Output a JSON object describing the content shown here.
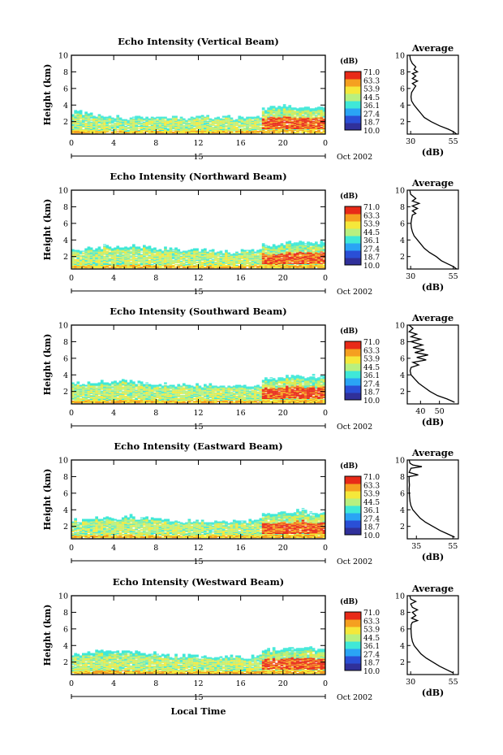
{
  "figure": {
    "x_title": "Local Time",
    "date_label": "Oct 2002",
    "day_label": "15",
    "colorbar_unit": "(dB)",
    "colorbar_ticks": [
      "71.0",
      "63.3",
      "53.9",
      "44.5",
      "36.1",
      "27.4",
      "18.7",
      "10.0"
    ],
    "colorbar_colors": [
      "#30309a",
      "#2a4fd6",
      "#2aa4f5",
      "#3fe8d8",
      "#b8f080",
      "#f5e83a",
      "#f5a020",
      "#e82a18"
    ]
  },
  "chart_data": [
    {
      "type": "heatmap",
      "title": "Echo Intensity (Vertical Beam)",
      "xlabel": "Local Time",
      "ylabel": "Height (km)",
      "x_ticks": [
        "0",
        "4",
        "8",
        "12",
        "16",
        "20",
        "0"
      ],
      "x_range": [
        0,
        24
      ],
      "y_ticks": [
        "2",
        "4",
        "6",
        "8",
        "10"
      ],
      "y_range": [
        0.5,
        10
      ],
      "top_height_km": [
        3.1,
        2.9,
        2.7,
        2.6,
        2.5,
        2.4,
        2.4,
        2.6,
        2.4,
        2.5,
        2.4,
        2.5,
        2.6,
        2.4,
        2.5,
        2.4,
        2.4,
        2.6,
        3.6,
        3.7,
        3.8,
        3.8,
        3.7,
        3.6
      ],
      "strong_echo_hours": [
        18,
        24
      ],
      "profile": {
        "title": "Average",
        "xlabel": "(dB)",
        "x_ticks": [
          "30",
          "55"
        ],
        "x_range": [
          28,
          58
        ],
        "y_ticks": [
          "2",
          "4",
          "6",
          "8",
          "10"
        ],
        "points": [
          [
            29.5,
            10
          ],
          [
            29.8,
            9.5
          ],
          [
            31,
            9
          ],
          [
            33,
            8.6
          ],
          [
            32,
            8.3
          ],
          [
            34,
            8
          ],
          [
            31,
            7.8
          ],
          [
            33,
            7.5
          ],
          [
            31,
            7.2
          ],
          [
            34,
            6.9
          ],
          [
            31,
            6.6
          ],
          [
            33,
            6.3
          ],
          [
            32,
            6
          ],
          [
            30.5,
            5.5
          ],
          [
            30.2,
            5
          ],
          [
            30.5,
            4.5
          ],
          [
            32,
            4
          ],
          [
            34,
            3.5
          ],
          [
            36,
            3
          ],
          [
            38,
            2.5
          ],
          [
            42,
            2
          ],
          [
            47,
            1.5
          ],
          [
            52,
            1.1
          ],
          [
            55,
            0.8
          ],
          [
            57,
            0.5
          ]
        ]
      }
    },
    {
      "type": "heatmap",
      "title": "Echo Intensity (Northward Beam)",
      "xlabel": "Local Time",
      "ylabel": "Height (km)",
      "x_ticks": [
        "0",
        "4",
        "8",
        "12",
        "16",
        "20",
        "0"
      ],
      "x_range": [
        0,
        24
      ],
      "y_ticks": [
        "2",
        "4",
        "6",
        "8",
        "10"
      ],
      "y_range": [
        0.5,
        10
      ],
      "top_height_km": [
        2.8,
        2.9,
        3.0,
        3.2,
        3.1,
        3.3,
        3.2,
        3.0,
        2.9,
        2.8,
        2.7,
        2.8,
        2.7,
        2.6,
        2.6,
        2.5,
        2.6,
        2.7,
        3.3,
        3.4,
        3.6,
        3.7,
        3.7,
        3.8
      ],
      "strong_echo_hours": [
        18,
        24
      ],
      "profile": {
        "title": "Average",
        "xlabel": "(dB)",
        "x_ticks": [
          "30",
          "55"
        ],
        "x_range": [
          28,
          58
        ],
        "y_ticks": [
          "2",
          "4",
          "6",
          "8",
          "10"
        ],
        "points": [
          [
            29.5,
            10
          ],
          [
            30,
            9.5
          ],
          [
            33,
            9
          ],
          [
            31,
            8.7
          ],
          [
            35,
            8.4
          ],
          [
            31,
            8.1
          ],
          [
            34,
            7.8
          ],
          [
            31,
            7.5
          ],
          [
            33,
            7.2
          ],
          [
            31,
            7
          ],
          [
            30.5,
            6.5
          ],
          [
            30.2,
            6
          ],
          [
            30.4,
            5.5
          ],
          [
            31,
            5
          ],
          [
            32,
            4.5
          ],
          [
            34,
            4
          ],
          [
            36,
            3.5
          ],
          [
            38,
            3
          ],
          [
            41,
            2.5
          ],
          [
            45,
            2
          ],
          [
            48,
            1.5
          ],
          [
            52,
            1.1
          ],
          [
            55,
            0.8
          ],
          [
            57,
            0.5
          ]
        ]
      }
    },
    {
      "type": "heatmap",
      "title": "Echo Intensity (Southward Beam)",
      "xlabel": "Local Time",
      "ylabel": "Height (km)",
      "x_ticks": [
        "0",
        "4",
        "8",
        "12",
        "16",
        "20",
        "0"
      ],
      "x_range": [
        0,
        24
      ],
      "y_ticks": [
        "2",
        "4",
        "6",
        "8",
        "10"
      ],
      "y_range": [
        0.5,
        10
      ],
      "top_height_km": [
        3.0,
        2.9,
        3.1,
        3.2,
        3.3,
        3.1,
        3.0,
        2.9,
        2.8,
        2.7,
        2.8,
        2.7,
        2.6,
        2.7,
        2.6,
        2.5,
        2.6,
        2.7,
        3.4,
        3.6,
        3.8,
        3.9,
        3.8,
        3.7
      ],
      "strong_echo_hours": [
        18,
        24
      ],
      "profile": {
        "title": "Average",
        "xlabel": "(dB)",
        "x_ticks": [
          "40",
          "50"
        ],
        "x_range": [
          33,
          60
        ],
        "y_ticks": [
          "2",
          "4",
          "6",
          "8",
          "10"
        ],
        "points": [
          [
            34,
            10
          ],
          [
            36,
            9.6
          ],
          [
            34,
            9.2
          ],
          [
            38,
            8.9
          ],
          [
            35,
            8.6
          ],
          [
            40,
            8.3
          ],
          [
            35,
            8
          ],
          [
            41,
            7.6
          ],
          [
            36,
            7.3
          ],
          [
            42,
            7
          ],
          [
            37,
            6.7
          ],
          [
            44,
            6.4
          ],
          [
            38,
            6.1
          ],
          [
            43,
            5.8
          ],
          [
            36,
            5.5
          ],
          [
            39,
            5.2
          ],
          [
            35,
            4.9
          ],
          [
            34.5,
            4.5
          ],
          [
            35,
            4
          ],
          [
            37,
            3.5
          ],
          [
            39,
            3
          ],
          [
            42,
            2.5
          ],
          [
            45,
            2
          ],
          [
            49,
            1.5
          ],
          [
            54,
            1.1
          ],
          [
            58,
            0.7
          ]
        ]
      }
    },
    {
      "type": "heatmap",
      "title": "Echo Intensity (Eastward Beam)",
      "xlabel": "Local Time",
      "ylabel": "Height (km)",
      "x_ticks": [
        "0",
        "4",
        "8",
        "12",
        "16",
        "20",
        "0"
      ],
      "x_range": [
        0,
        24
      ],
      "y_ticks": [
        "2",
        "4",
        "6",
        "8",
        "10"
      ],
      "y_range": [
        0.5,
        10
      ],
      "top_height_km": [
        2.7,
        2.8,
        2.9,
        3.1,
        3.0,
        3.2,
        3.0,
        2.9,
        2.8,
        2.7,
        2.6,
        2.7,
        2.6,
        2.6,
        2.5,
        2.5,
        2.6,
        2.7,
        3.5,
        3.6,
        3.8,
        3.9,
        3.7,
        3.6
      ],
      "strong_echo_hours": [
        18,
        24
      ],
      "profile": {
        "title": "Average",
        "xlabel": "(dB)",
        "x_ticks": [
          "35",
          "55"
        ],
        "x_range": [
          30,
          58
        ],
        "y_ticks": [
          "2",
          "4",
          "6",
          "8",
          "10"
        ],
        "points": [
          [
            31,
            10
          ],
          [
            31.5,
            9.6
          ],
          [
            33,
            9.4
          ],
          [
            38,
            9.2
          ],
          [
            32,
            9
          ],
          [
            31,
            8.5
          ],
          [
            36,
            8.2
          ],
          [
            31,
            8
          ],
          [
            31,
            7.5
          ],
          [
            31.2,
            7
          ],
          [
            31,
            6.5
          ],
          [
            31.1,
            6
          ],
          [
            31.3,
            5.5
          ],
          [
            31.5,
            5
          ],
          [
            32,
            4.5
          ],
          [
            33,
            4
          ],
          [
            35,
            3.5
          ],
          [
            37,
            3
          ],
          [
            40,
            2.5
          ],
          [
            44,
            2
          ],
          [
            48,
            1.5
          ],
          [
            52,
            1.1
          ],
          [
            56,
            0.7
          ]
        ]
      }
    },
    {
      "type": "heatmap",
      "title": "Echo Intensity (Westward Beam)",
      "xlabel": "Local Time",
      "ylabel": "Height (km)",
      "x_ticks": [
        "0",
        "4",
        "8",
        "12",
        "16",
        "20",
        "0"
      ],
      "x_range": [
        0,
        24
      ],
      "y_ticks": [
        "2",
        "4",
        "6",
        "8",
        "10"
      ],
      "y_range": [
        0.5,
        10
      ],
      "top_height_km": [
        2.9,
        3.0,
        3.2,
        3.4,
        3.3,
        3.2,
        3.1,
        3.0,
        2.8,
        2.7,
        2.7,
        2.8,
        2.6,
        2.6,
        2.5,
        2.6,
        2.6,
        2.7,
        3.4,
        3.5,
        3.6,
        3.7,
        3.6,
        3.5
      ],
      "strong_echo_hours": [
        18,
        24
      ],
      "profile": {
        "title": "Average",
        "xlabel": "(dB)",
        "x_ticks": [
          "30",
          "55"
        ],
        "x_range": [
          28,
          58
        ],
        "y_ticks": [
          "2",
          "4",
          "6",
          "8",
          "10"
        ],
        "points": [
          [
            29.5,
            10
          ],
          [
            30,
            9.6
          ],
          [
            33,
            9.3
          ],
          [
            30,
            9
          ],
          [
            31,
            8.6
          ],
          [
            34,
            8.3
          ],
          [
            31,
            8
          ],
          [
            33,
            7.6
          ],
          [
            30.5,
            7.3
          ],
          [
            34,
            7
          ],
          [
            31,
            6.8
          ],
          [
            30.3,
            6.5
          ],
          [
            30.2,
            6
          ],
          [
            30.3,
            5.5
          ],
          [
            30.5,
            5
          ],
          [
            31,
            4.5
          ],
          [
            32,
            4
          ],
          [
            34,
            3.5
          ],
          [
            36,
            3
          ],
          [
            39,
            2.5
          ],
          [
            43,
            2
          ],
          [
            47,
            1.5
          ],
          [
            51,
            1.1
          ],
          [
            55,
            0.7
          ]
        ]
      }
    }
  ]
}
